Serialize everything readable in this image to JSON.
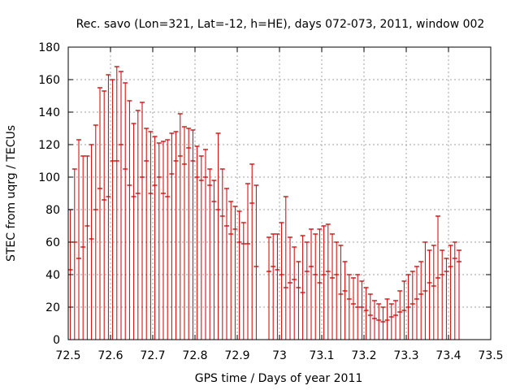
{
  "chart_data": {
    "type": "scatter",
    "title": "Rec. savo (Lon=321, Lat=-12, h=HE), days 072-073, 2011, window 002",
    "xlabel": "GPS time / Days of year 2011",
    "ylabel": "STEC from uqrg / TECUs",
    "xlim": [
      72.5,
      73.5
    ],
    "ylim": [
      0,
      180
    ],
    "grid": true,
    "legend": "none",
    "x_ticks": [
      "72.5",
      "72.6",
      "72.7",
      "72.8",
      "72.9",
      "73",
      "73.1",
      "73.2",
      "73.3",
      "73.4",
      "73.5"
    ],
    "y_ticks": [
      "0",
      "20",
      "40",
      "60",
      "80",
      "100",
      "120",
      "140",
      "160",
      "180"
    ],
    "series_color": "#cc0000",
    "points": [
      [
        72.505,
        43,
        80
      ],
      [
        72.515,
        60,
        105
      ],
      [
        72.525,
        50,
        123
      ],
      [
        72.535,
        57,
        113
      ],
      [
        72.545,
        70,
        113
      ],
      [
        72.555,
        62,
        120
      ],
      [
        72.565,
        80,
        132
      ],
      [
        72.575,
        93,
        155
      ],
      [
        72.585,
        86,
        153
      ],
      [
        72.595,
        88,
        163
      ],
      [
        72.605,
        110,
        160
      ],
      [
        72.615,
        110,
        168
      ],
      [
        72.625,
        120,
        165
      ],
      [
        72.635,
        105,
        158
      ],
      [
        72.645,
        95,
        147
      ],
      [
        72.655,
        88,
        133
      ],
      [
        72.665,
        90,
        141
      ],
      [
        72.675,
        100,
        146
      ],
      [
        72.685,
        110,
        130
      ],
      [
        72.695,
        90,
        128
      ],
      [
        72.705,
        95,
        125
      ],
      [
        72.715,
        100,
        121
      ],
      [
        72.725,
        90,
        122
      ],
      [
        72.735,
        88,
        123
      ],
      [
        72.745,
        102,
        127
      ],
      [
        72.755,
        110,
        128
      ],
      [
        72.765,
        113,
        139
      ],
      [
        72.775,
        108,
        131
      ],
      [
        72.785,
        118,
        130
      ],
      [
        72.795,
        110,
        129
      ],
      [
        72.805,
        100,
        119
      ],
      [
        72.815,
        98,
        113
      ],
      [
        72.825,
        100,
        117
      ],
      [
        72.835,
        95,
        105
      ],
      [
        72.845,
        85,
        98
      ],
      [
        72.855,
        80,
        127
      ],
      [
        72.865,
        76,
        105
      ],
      [
        72.875,
        70,
        93
      ],
      [
        72.885,
        65,
        85
      ],
      [
        72.895,
        68,
        82
      ],
      [
        72.905,
        60,
        79
      ],
      [
        72.915,
        59,
        72
      ],
      [
        72.925,
        59,
        96
      ],
      [
        72.935,
        84,
        108
      ],
      [
        72.945,
        45,
        95
      ],
      [
        72.975,
        42,
        63
      ],
      [
        72.985,
        45,
        65
      ],
      [
        72.995,
        43,
        65
      ],
      [
        73.005,
        40,
        72
      ],
      [
        73.015,
        32,
        88
      ],
      [
        73.025,
        35,
        63
      ],
      [
        73.035,
        37,
        57
      ],
      [
        73.045,
        32,
        48
      ],
      [
        73.055,
        29,
        64
      ],
      [
        73.065,
        42,
        60
      ],
      [
        73.075,
        45,
        68
      ],
      [
        73.085,
        40,
        65
      ],
      [
        73.095,
        35,
        68
      ],
      [
        73.105,
        40,
        70
      ],
      [
        73.115,
        42,
        71
      ],
      [
        73.125,
        38,
        65
      ],
      [
        73.135,
        40,
        60
      ],
      [
        73.145,
        28,
        58
      ],
      [
        73.155,
        30,
        48
      ],
      [
        73.165,
        25,
        40
      ],
      [
        73.175,
        22,
        38
      ],
      [
        73.185,
        20,
        40
      ],
      [
        73.195,
        20,
        36
      ],
      [
        73.205,
        18,
        32
      ],
      [
        73.215,
        15,
        28
      ],
      [
        73.225,
        13,
        24
      ],
      [
        73.235,
        12,
        22
      ],
      [
        73.245,
        11,
        20
      ],
      [
        73.255,
        12,
        25
      ],
      [
        73.265,
        14,
        22
      ],
      [
        73.275,
        15,
        24
      ],
      [
        73.285,
        17,
        30
      ],
      [
        73.295,
        18,
        36
      ],
      [
        73.305,
        20,
        40
      ],
      [
        73.315,
        22,
        42
      ],
      [
        73.325,
        25,
        45
      ],
      [
        73.335,
        28,
        48
      ],
      [
        73.345,
        30,
        60
      ],
      [
        73.355,
        35,
        55
      ],
      [
        73.365,
        33,
        58
      ],
      [
        73.375,
        38,
        76
      ],
      [
        73.385,
        40,
        55
      ],
      [
        73.395,
        42,
        50
      ],
      [
        73.405,
        45,
        58
      ],
      [
        73.415,
        50,
        60
      ],
      [
        73.425,
        48,
        55
      ]
    ]
  }
}
